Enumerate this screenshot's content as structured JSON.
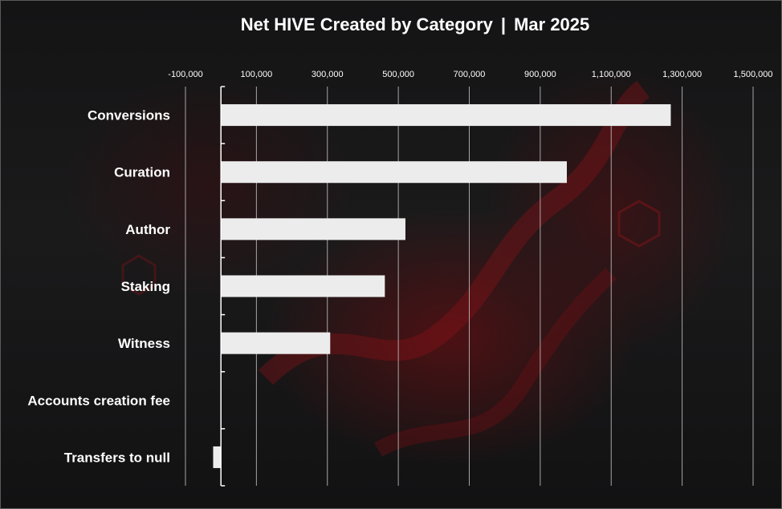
{
  "chart_data": {
    "type": "bar",
    "orientation": "horizontal",
    "title": "Net HIVE Created by Category",
    "subtitle": "Mar 2025",
    "categories": [
      "Conversions",
      "Curation",
      "Author",
      "Staking",
      "Witness",
      "Accounts creation fee",
      "Transfers to null"
    ],
    "values": [
      1268000,
      975000,
      520000,
      462000,
      308000,
      0,
      -22000
    ],
    "xlim": [
      -100000,
      1500000
    ],
    "xticks": [
      -100000,
      100000,
      300000,
      500000,
      700000,
      900000,
      1100000,
      1300000,
      1500000
    ],
    "xtick_labels": [
      "-100,000",
      "100,000",
      "300,000",
      "500,000",
      "700,000",
      "900,000",
      "1,100,000",
      "1,300,000",
      "1,500,000"
    ],
    "grid": "vertical",
    "xlabel": "",
    "ylabel": "",
    "bar_color": "#ececec",
    "grid_color": "#bfbfbf",
    "axis_color": "#ffffff",
    "background_accent": "#7a0f14"
  }
}
